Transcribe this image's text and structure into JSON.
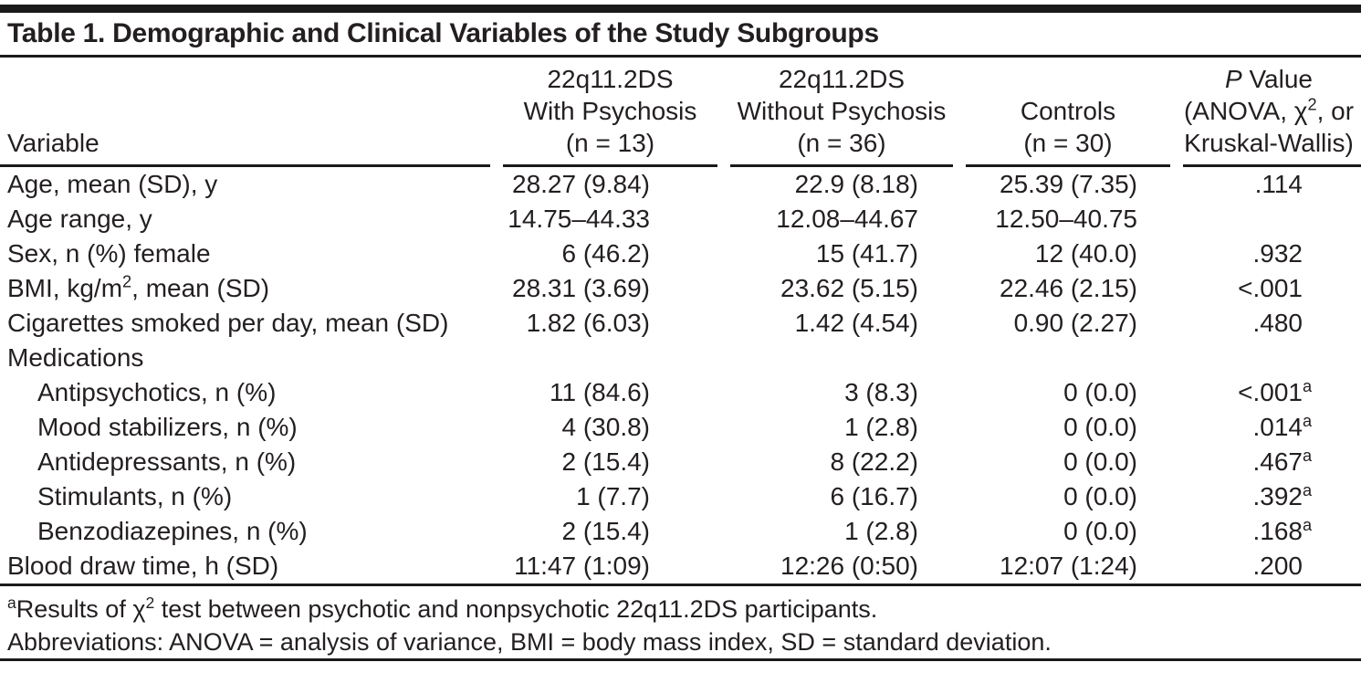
{
  "title": "Table 1. Demographic and Clinical Variables of the Study Subgroups",
  "colors": {
    "text": "#231f20",
    "rule": "#1a1a1a",
    "background": "#ffffff"
  },
  "table": {
    "columns": [
      {
        "id": "variable",
        "header_lines": [
          "Variable"
        ]
      },
      {
        "id": "22q112ds-with-psychosis",
        "header_lines": [
          "22q11.2DS",
          "With Psychosis",
          "(n = 13)"
        ]
      },
      {
        "id": "22q112ds-without-psychosis",
        "header_lines": [
          "22q11.2DS",
          "Without Psychosis",
          "(n = 36)"
        ]
      },
      {
        "id": "controls",
        "header_lines": [
          "Controls",
          "(n = 30)"
        ]
      },
      {
        "id": "p-value",
        "header_lines": [
          "~P~ Value",
          "(ANOVA, χ^2, or",
          "Kruskal-Wallis)"
        ]
      }
    ],
    "rows": [
      {
        "label": "Age, mean (SD), y",
        "indent": false,
        "values": [
          "28.27 (9.84)",
          "22.9 (8.18)",
          "25.39 (7.35)",
          ".114"
        ]
      },
      {
        "label": "Age range, y",
        "indent": false,
        "values": [
          "14.75–44.33",
          "12.08–44.67",
          "12.50–40.75",
          ""
        ]
      },
      {
        "label": "Sex, n (%) female",
        "indent": false,
        "values": [
          "6 (46.2)",
          "15 (41.7)",
          "12 (40.0)",
          ".932"
        ]
      },
      {
        "label": "BMI, kg/m^2, mean (SD)",
        "indent": false,
        "values": [
          "28.31 (3.69)",
          "23.62 (5.15)",
          "22.46 (2.15)",
          "<.001"
        ]
      },
      {
        "label": "Cigarettes smoked per day, mean (SD)",
        "indent": false,
        "values": [
          "1.82 (6.03)",
          "1.42 (4.54)",
          "0.90 (2.27)",
          ".480"
        ]
      },
      {
        "label": "Medications",
        "indent": false,
        "values": [
          "",
          "",
          "",
          ""
        ]
      },
      {
        "label": "Antipsychotics, n (%)",
        "indent": true,
        "values": [
          "11 (84.6)",
          "3 (8.3)",
          "0 (0.0)",
          "<.001^a"
        ]
      },
      {
        "label": "Mood stabilizers, n (%)",
        "indent": true,
        "values": [
          "4 (30.8)",
          "1 (2.8)",
          "0 (0.0)",
          ".014^a"
        ]
      },
      {
        "label": "Antidepressants, n (%)",
        "indent": true,
        "values": [
          "2 (15.4)",
          "8 (22.2)",
          "0 (0.0)",
          ".467^a"
        ]
      },
      {
        "label": "Stimulants, n (%)",
        "indent": true,
        "values": [
          "1 (7.7)",
          "6 (16.7)",
          "0 (0.0)",
          ".392^a"
        ]
      },
      {
        "label": "Benzodiazepines, n (%)",
        "indent": true,
        "values": [
          "2 (15.4)",
          "1 (2.8)",
          "0 (0.0)",
          ".168^a"
        ]
      },
      {
        "label": "Blood draw time, h (SD)",
        "indent": false,
        "values": [
          "11:47 (1:09)",
          "12:26 (0:50)",
          "12:07 (1:24)",
          ".200"
        ]
      }
    ]
  },
  "footnotes": [
    "^aResults of χ^2 test between psychotic and nonpsychotic 22q11.2DS participants.",
    "Abbreviations: ANOVA = analysis of variance, BMI = body mass index, SD = standard deviation."
  ]
}
